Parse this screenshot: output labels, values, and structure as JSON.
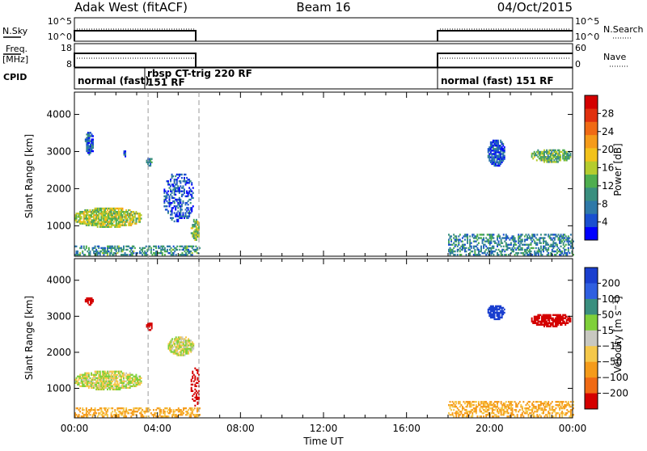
{
  "header": {
    "station": "Adak West (fitACF)",
    "beam": "Beam 16",
    "date": "04/Oct/2015"
  },
  "panels": {
    "nsky": {
      "label": "N.Sky",
      "right_label": "N.Search",
      "left_ticks": [
        "10^5",
        "10^0"
      ],
      "right_ticks": [
        "10^5",
        "10^0"
      ]
    },
    "freq": {
      "label_line1": "Freq.",
      "label_line2": "[MHz]",
      "right_label": "Nave",
      "left_ticks": [
        "18",
        "8"
      ],
      "right_ticks": [
        "60",
        "0"
      ]
    },
    "cpid": {
      "label": "CPID",
      "segments": [
        {
          "text": "normal (fast)",
          "start": 0.0
        },
        {
          "text": "rbsp CT-trig 220 RF",
          "start": 3.55
        },
        {
          "text": "151 RF",
          "start": 3.55
        },
        {
          "text": "normal (fast) 151 RF",
          "start": 18.0
        }
      ]
    }
  },
  "chart_data": [
    {
      "type": "heatmap",
      "name": "Power",
      "ylabel": "Slant Range [km]",
      "xlabel": "Time UT",
      "xlim_hours": [
        0,
        24
      ],
      "ylim_km": [
        180,
        4600
      ],
      "x_ticks": [
        "00:00",
        "04:00",
        "08:00",
        "12:00",
        "16:00",
        "20:00",
        "00:00"
      ],
      "y_ticks": [
        1000,
        2000,
        3000,
        4000
      ],
      "colorbar": {
        "label": "Power [dB]",
        "ticks": [
          4,
          8,
          12,
          16,
          20,
          24,
          28
        ],
        "range": [
          0,
          32
        ],
        "colors": [
          "#0000ff",
          "#1a4fd0",
          "#2f79a8",
          "#3a8f7f",
          "#4fae4f",
          "#b5cc2e",
          "#f2c21b",
          "#f59b1a",
          "#f06a14",
          "#e0300e",
          "#d40000"
        ]
      },
      "data_gaps_hours": [
        [
          6.0,
          18.0
        ]
      ],
      "regions": [
        {
          "t0": 0.0,
          "t1": 3.2,
          "r0": 950,
          "r1": 1450,
          "level": 16
        },
        {
          "t0": 0.0,
          "t1": 6.0,
          "r0": 200,
          "r1": 450,
          "level": 10
        },
        {
          "t0": 3.45,
          "t1": 3.75,
          "r0": 2600,
          "r1": 2800,
          "level": 8
        },
        {
          "t0": 2.3,
          "t1": 2.5,
          "r0": 2850,
          "r1": 3000,
          "level": 6
        },
        {
          "t0": 5.6,
          "t1": 6.0,
          "r0": 600,
          "r1": 1150,
          "level": 14
        },
        {
          "t0": 4.3,
          "t1": 5.7,
          "r0": 1100,
          "r1": 2400,
          "level": 5
        },
        {
          "t0": 0.5,
          "t1": 0.9,
          "r0": 2900,
          "r1": 3500,
          "level": 6
        },
        {
          "t0": 18.0,
          "t1": 24.0,
          "r0": 200,
          "r1": 750,
          "level": 9
        },
        {
          "t0": 19.9,
          "t1": 20.7,
          "r0": 2600,
          "r1": 3300,
          "level": 5
        },
        {
          "t0": 22.0,
          "t1": 23.9,
          "r0": 2700,
          "r1": 3050,
          "level": 13
        }
      ]
    },
    {
      "type": "heatmap",
      "name": "Velocity",
      "ylabel": "Slant Range [km]",
      "xlabel": "Time UT",
      "xlim_hours": [
        0,
        24
      ],
      "ylim_km": [
        180,
        4600
      ],
      "x_ticks": [
        "00:00",
        "04:00",
        "08:00",
        "12:00",
        "16:00",
        "20:00",
        "00:00"
      ],
      "y_ticks": [
        1000,
        2000,
        3000,
        4000
      ],
      "colorbar": {
        "label": "Velocity [m s^-1]",
        "ticks": [
          "200",
          "100",
          "50",
          "15",
          "-15",
          "-50",
          "-100",
          "-200"
        ],
        "colors": [
          "#1a3fcf",
          "#2f5fe0",
          "#3a8f7f",
          "#7fd03a",
          "#c8c8c0",
          "#f5c84a",
          "#f59b1a",
          "#f06a14",
          "#d40000"
        ]
      },
      "data_gaps_hours": [
        [
          6.0,
          18.0
        ]
      ],
      "regions": [
        {
          "t0": 0.0,
          "t1": 3.2,
          "r0": 950,
          "r1": 1450,
          "velocity": 0
        },
        {
          "t0": 0.0,
          "t1": 6.0,
          "r0": 200,
          "r1": 450,
          "velocity": -40
        },
        {
          "t0": 3.45,
          "t1": 3.75,
          "r0": 2600,
          "r1": 2800,
          "velocity": -220
        },
        {
          "t0": 0.5,
          "t1": 0.9,
          "r0": 3300,
          "r1": 3500,
          "velocity": -220
        },
        {
          "t0": 5.6,
          "t1": 6.0,
          "r0": 500,
          "r1": 1550,
          "velocity": -220
        },
        {
          "t0": 4.5,
          "t1": 5.7,
          "r0": 1900,
          "r1": 2400,
          "velocity": 0
        },
        {
          "t0": 18.0,
          "t1": 24.0,
          "r0": 200,
          "r1": 650,
          "velocity": -40
        },
        {
          "t0": 19.9,
          "t1": 20.7,
          "r0": 2900,
          "r1": 3300,
          "velocity": 220
        },
        {
          "t0": 22.0,
          "t1": 23.9,
          "r0": 2700,
          "r1": 3050,
          "velocity": -220
        }
      ]
    }
  ]
}
